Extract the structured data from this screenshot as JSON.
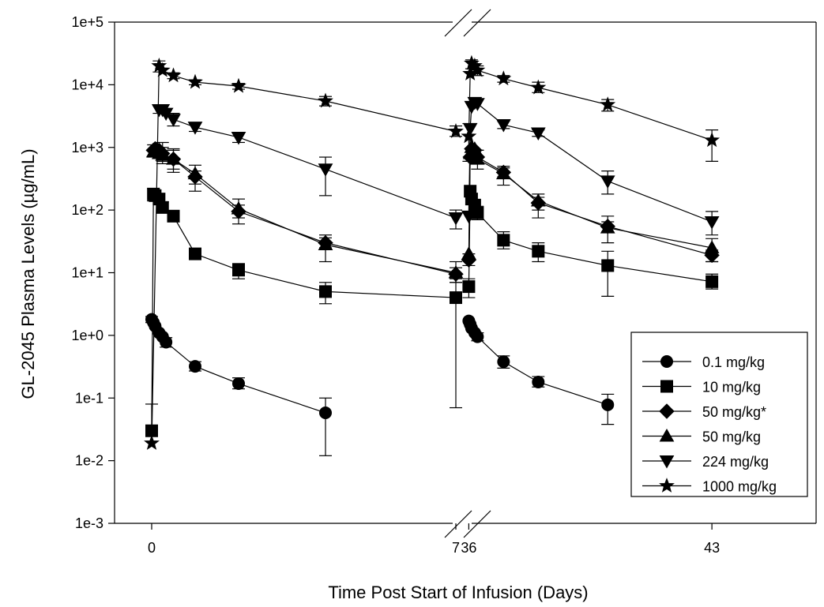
{
  "chart_data": {
    "type": "scatter",
    "title": "",
    "xlabel": "Time Post Start of Infusion (Days)",
    "ylabel": "GL-2045 Plasma Levels (µg/mL)",
    "y_scale": "log",
    "ylim": [
      0.001,
      100000
    ],
    "y_ticks": [
      "1e-3",
      "1e-2",
      "1e-1",
      "1e+0",
      "1e+1",
      "1e+2",
      "1e+3",
      "1e+4",
      "1e+5"
    ],
    "x_broken_axis": true,
    "x_segments": [
      {
        "xlim": [
          -0.2,
          7.0
        ]
      },
      {
        "xlim": [
          35.9,
          46.0
        ]
      }
    ],
    "x_ticks": [
      {
        "value": 0,
        "label": "0"
      },
      {
        "value": 7,
        "label": "7"
      },
      {
        "value": 36,
        "label": "36"
      },
      {
        "value": 43,
        "label": "43"
      }
    ],
    "grid": false,
    "legend_position": "bottom-right",
    "series": [
      {
        "name": "0.1 mg/kg",
        "marker": "circle",
        "points": [
          {
            "x": 0.0,
            "y": 1.8,
            "lo": 1.6,
            "hi": 2.0
          },
          {
            "x": 0.04,
            "y": 1.6
          },
          {
            "x": 0.08,
            "y": 1.4
          },
          {
            "x": 0.17,
            "y": 1.1
          },
          {
            "x": 0.25,
            "y": 0.95
          },
          {
            "x": 0.33,
            "y": 0.78,
            "lo": 0.65,
            "hi": 0.92
          },
          {
            "x": 1.0,
            "y": 0.32,
            "lo": 0.27,
            "hi": 0.38
          },
          {
            "x": 2.0,
            "y": 0.17,
            "lo": 0.14,
            "hi": 0.21
          },
          {
            "x": 4.0,
            "y": 0.058,
            "lo": 0.012,
            "hi": 0.1
          }
        ],
        "points_2": [
          {
            "x": 36.0,
            "y": 1.7
          },
          {
            "x": 36.04,
            "y": 1.5
          },
          {
            "x": 36.08,
            "y": 1.3
          },
          {
            "x": 36.17,
            "y": 1.1
          },
          {
            "x": 36.25,
            "y": 0.95,
            "lo": 0.82,
            "hi": 1.1
          },
          {
            "x": 37.0,
            "y": 0.38,
            "lo": 0.3,
            "hi": 0.47
          },
          {
            "x": 38.0,
            "y": 0.18,
            "lo": 0.15,
            "hi": 0.22
          },
          {
            "x": 40.0,
            "y": 0.078,
            "lo": 0.038,
            "hi": 0.115
          }
        ]
      },
      {
        "name": "10 mg/kg",
        "marker": "square",
        "points": [
          {
            "x": 0.0,
            "y": 0.03
          },
          {
            "x": 0.04,
            "y": 180,
            "lo": 140,
            "hi": 220
          },
          {
            "x": 0.08,
            "y": 170
          },
          {
            "x": 0.17,
            "y": 150
          },
          {
            "x": 0.25,
            "y": 110,
            "lo": 90,
            "hi": 135
          },
          {
            "x": 0.5,
            "y": 80,
            "lo": 65,
            "hi": 97
          },
          {
            "x": 1.0,
            "y": 20,
            "lo": 17,
            "hi": 23
          },
          {
            "x": 2.0,
            "y": 11,
            "lo": 8,
            "hi": 14
          },
          {
            "x": 4.0,
            "y": 5,
            "lo": 3.2,
            "hi": 7
          },
          {
            "x": 7.0,
            "y": 4,
            "lo": 0.07,
            "hi": 8
          }
        ],
        "points_2": [
          {
            "x": 36.0,
            "y": 6,
            "lo": 4,
            "hi": 8
          },
          {
            "x": 36.04,
            "y": 200
          },
          {
            "x": 36.08,
            "y": 150
          },
          {
            "x": 36.17,
            "y": 120
          },
          {
            "x": 36.25,
            "y": 90,
            "lo": 70,
            "hi": 115
          },
          {
            "x": 37.0,
            "y": 33,
            "lo": 24,
            "hi": 45
          },
          {
            "x": 38.0,
            "y": 22,
            "lo": 15,
            "hi": 30
          },
          {
            "x": 40.0,
            "y": 13,
            "lo": 4.2,
            "hi": 22
          },
          {
            "x": 43.0,
            "y": 7.2,
            "lo": 5.5,
            "hi": 9.5
          }
        ]
      },
      {
        "name": "50 mg/kg*",
        "marker": "diamond",
        "points": [
          {
            "x": 0.04,
            "y": 900,
            "lo": 700,
            "hi": 1100
          },
          {
            "x": 0.08,
            "y": 950
          },
          {
            "x": 0.17,
            "y": 900
          },
          {
            "x": 0.25,
            "y": 800,
            "lo": 600,
            "hi": 1200
          },
          {
            "x": 0.5,
            "y": 650,
            "lo": 450,
            "hi": 900
          },
          {
            "x": 1.0,
            "y": 340,
            "lo": 260,
            "hi": 420
          },
          {
            "x": 2.0,
            "y": 95,
            "lo": 75,
            "hi": 120
          },
          {
            "x": 4.0,
            "y": 30,
            "lo": 25,
            "hi": 36
          },
          {
            "x": 7.0,
            "y": 9.5,
            "lo": 7,
            "hi": 12
          }
        ],
        "points_2": [
          {
            "x": 36.0,
            "y": 16,
            "lo": 13,
            "hi": 20
          },
          {
            "x": 36.04,
            "y": 700
          },
          {
            "x": 36.08,
            "y": 950
          },
          {
            "x": 36.17,
            "y": 900
          },
          {
            "x": 36.25,
            "y": 700,
            "lo": 550,
            "hi": 900
          },
          {
            "x": 37.0,
            "y": 400,
            "lo": 340,
            "hi": 470
          },
          {
            "x": 38.0,
            "y": 130,
            "lo": 100,
            "hi": 160
          },
          {
            "x": 40.0,
            "y": 55,
            "lo": 45,
            "hi": 65
          },
          {
            "x": 43.0,
            "y": 19,
            "lo": 15,
            "hi": 23
          }
        ]
      },
      {
        "name": "50 mg/kg",
        "marker": "triangle-up",
        "points": [
          {
            "x": 0.04,
            "y": 850
          },
          {
            "x": 0.08,
            "y": 900
          },
          {
            "x": 0.17,
            "y": 800
          },
          {
            "x": 0.25,
            "y": 750,
            "lo": 550,
            "hi": 1000
          },
          {
            "x": 0.5,
            "y": 650,
            "lo": 400,
            "hi": 950
          },
          {
            "x": 1.0,
            "y": 380,
            "lo": 200,
            "hi": 520
          },
          {
            "x": 2.0,
            "y": 105,
            "lo": 60,
            "hi": 150
          },
          {
            "x": 4.0,
            "y": 28,
            "lo": 15,
            "hi": 40
          },
          {
            "x": 7.0,
            "y": 10,
            "lo": 7,
            "hi": 15
          }
        ],
        "points_2": [
          {
            "x": 36.0,
            "y": 20
          },
          {
            "x": 36.04,
            "y": 800
          },
          {
            "x": 36.08,
            "y": 1000
          },
          {
            "x": 36.17,
            "y": 950
          },
          {
            "x": 36.25,
            "y": 650,
            "lo": 450,
            "hi": 900
          },
          {
            "x": 37.0,
            "y": 380,
            "lo": 250,
            "hi": 500
          },
          {
            "x": 38.0,
            "y": 140,
            "lo": 75,
            "hi": 180
          },
          {
            "x": 40.0,
            "y": 52,
            "lo": 30,
            "hi": 80
          },
          {
            "x": 43.0,
            "y": 25,
            "lo": 15,
            "hi": 35
          }
        ]
      },
      {
        "name": "224 mg/kg",
        "marker": "triangle-down",
        "points": [
          {
            "x": 0.17,
            "y": 4000,
            "lo": 3500,
            "hi": 4600
          },
          {
            "x": 0.25,
            "y": 4000
          },
          {
            "x": 0.33,
            "y": 3500
          },
          {
            "x": 0.5,
            "y": 2800,
            "lo": 2200,
            "hi": 3500
          },
          {
            "x": 1.0,
            "y": 2100,
            "lo": 1800,
            "hi": 2400
          },
          {
            "x": 2.0,
            "y": 1450,
            "lo": 1200,
            "hi": 1700
          },
          {
            "x": 4.0,
            "y": 450,
            "lo": 170,
            "hi": 700
          },
          {
            "x": 7.0,
            "y": 75,
            "lo": 50,
            "hi": 100
          }
        ],
        "points_2": [
          {
            "x": 36.0,
            "y": 80
          },
          {
            "x": 36.04,
            "y": 2000
          },
          {
            "x": 36.08,
            "y": 4500
          },
          {
            "x": 36.17,
            "y": 5200
          },
          {
            "x": 36.25,
            "y": 5000
          },
          {
            "x": 37.0,
            "y": 2300,
            "lo": 2000,
            "hi": 2600
          },
          {
            "x": 38.0,
            "y": 1700,
            "lo": 1500,
            "hi": 1900
          },
          {
            "x": 40.0,
            "y": 290,
            "lo": 180,
            "hi": 420
          },
          {
            "x": 43.0,
            "y": 65,
            "lo": 40,
            "hi": 95
          }
        ]
      },
      {
        "name": "1000 mg/kg",
        "marker": "star",
        "points": [
          {
            "x": 0.0,
            "y": 0.019,
            "hi": 0.08
          },
          {
            "x": 0.17,
            "y": 20000,
            "lo": 16000,
            "hi": 24000
          },
          {
            "x": 0.25,
            "y": 17000
          },
          {
            "x": 0.5,
            "y": 14000,
            "lo": 12500,
            "hi": 15500
          },
          {
            "x": 1.0,
            "y": 11000,
            "lo": 10000,
            "hi": 12000
          },
          {
            "x": 2.0,
            "y": 9500,
            "lo": 8500,
            "hi": 10500
          },
          {
            "x": 4.0,
            "y": 5500,
            "lo": 4600,
            "hi": 6500
          },
          {
            "x": 7.0,
            "y": 1800,
            "lo": 1500,
            "hi": 2200
          }
        ],
        "points_2": [
          {
            "x": 36.0,
            "y": 1500,
            "lo": 600,
            "hi": 2400
          },
          {
            "x": 36.04,
            "y": 15000
          },
          {
            "x": 36.08,
            "y": 22000,
            "lo": 18000,
            "hi": 25000
          },
          {
            "x": 36.17,
            "y": 20000
          },
          {
            "x": 36.25,
            "y": 17000,
            "lo": 14000,
            "hi": 20000
          },
          {
            "x": 37.0,
            "y": 12500,
            "lo": 11000,
            "hi": 14000
          },
          {
            "x": 38.0,
            "y": 9000,
            "lo": 7500,
            "hi": 11000
          },
          {
            "x": 40.0,
            "y": 4800,
            "lo": 3800,
            "hi": 5800
          },
          {
            "x": 43.0,
            "y": 1300,
            "lo": 600,
            "hi": 1900
          }
        ]
      }
    ]
  }
}
